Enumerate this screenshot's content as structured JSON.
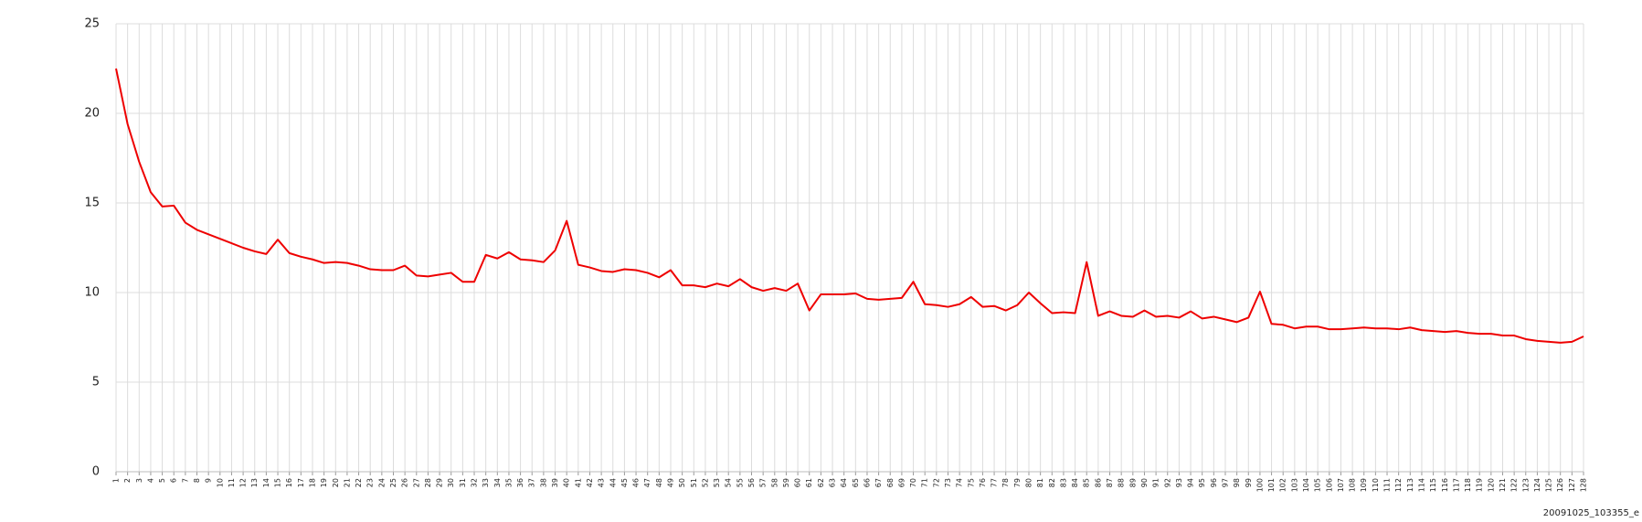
{
  "chart_data": {
    "type": "line",
    "footer": "20091025_103355_e",
    "x": [
      1,
      2,
      3,
      4,
      5,
      6,
      7,
      8,
      9,
      10,
      11,
      12,
      13,
      14,
      15,
      16,
      17,
      18,
      19,
      20,
      21,
      22,
      23,
      24,
      25,
      26,
      27,
      28,
      29,
      30,
      31,
      32,
      33,
      34,
      35,
      36,
      37,
      38,
      39,
      40,
      41,
      42,
      43,
      44,
      45,
      46,
      47,
      48,
      49,
      50,
      51,
      52,
      53,
      54,
      55,
      56,
      57,
      58,
      59,
      60,
      61,
      62,
      63,
      64,
      65,
      66,
      67,
      68,
      69,
      70,
      71,
      72,
      73,
      74,
      75,
      76,
      77,
      78,
      79,
      80,
      81,
      82,
      83,
      84,
      85,
      86,
      87,
      88,
      89,
      90,
      91,
      92,
      93,
      94,
      95,
      96,
      97,
      98,
      99,
      100,
      101,
      102,
      103,
      104,
      105,
      106,
      107,
      108,
      109,
      110,
      111,
      112,
      113,
      114,
      115,
      116,
      117,
      118,
      119,
      120,
      121,
      122,
      123,
      124,
      125,
      126,
      127,
      128
    ],
    "series": [
      {
        "color": "#ee0000",
        "values": [
          22.5,
          19.4,
          17.3,
          15.6,
          14.8,
          14.85,
          13.9,
          13.5,
          13.25,
          13.0,
          12.75,
          12.5,
          12.3,
          12.15,
          12.95,
          12.2,
          12.0,
          11.85,
          11.65,
          11.7,
          11.65,
          11.5,
          11.3,
          11.25,
          11.25,
          11.5,
          10.95,
          10.9,
          11.0,
          11.1,
          10.6,
          10.6,
          12.1,
          11.9,
          12.25,
          11.85,
          11.8,
          11.7,
          12.35,
          14.0,
          11.55,
          11.4,
          11.2,
          11.15,
          11.3,
          11.25,
          11.1,
          10.85,
          11.25,
          10.4,
          10.4,
          10.3,
          10.5,
          10.35,
          10.75,
          10.3,
          10.1,
          10.25,
          10.1,
          10.5,
          9.0,
          9.9,
          9.9,
          9.9,
          9.95,
          9.65,
          9.6,
          9.65,
          9.7,
          10.6,
          9.35,
          9.3,
          9.2,
          9.35,
          9.75,
          9.2,
          9.25,
          9.0,
          9.3,
          10.0,
          9.4,
          8.85,
          8.9,
          8.85,
          11.7,
          8.7,
          8.95,
          8.7,
          8.65,
          9.0,
          8.65,
          8.7,
          8.6,
          8.95,
          8.55,
          8.65,
          8.5,
          8.35,
          8.6,
          10.05,
          8.25,
          8.2,
          8.0,
          8.1,
          8.1,
          7.95,
          7.95,
          8.0,
          8.05,
          8.0,
          8.0,
          7.95,
          8.05,
          7.9,
          7.85,
          7.8,
          7.85,
          7.75,
          7.7,
          7.7,
          7.6,
          7.6,
          7.4,
          7.3,
          7.25,
          7.2,
          7.25,
          7.55
        ]
      }
    ],
    "xlim": [
      1,
      128
    ],
    "ylim": [
      0,
      25
    ],
    "yticks": [
      0,
      5,
      10,
      15,
      20,
      25
    ],
    "grid": true
  }
}
